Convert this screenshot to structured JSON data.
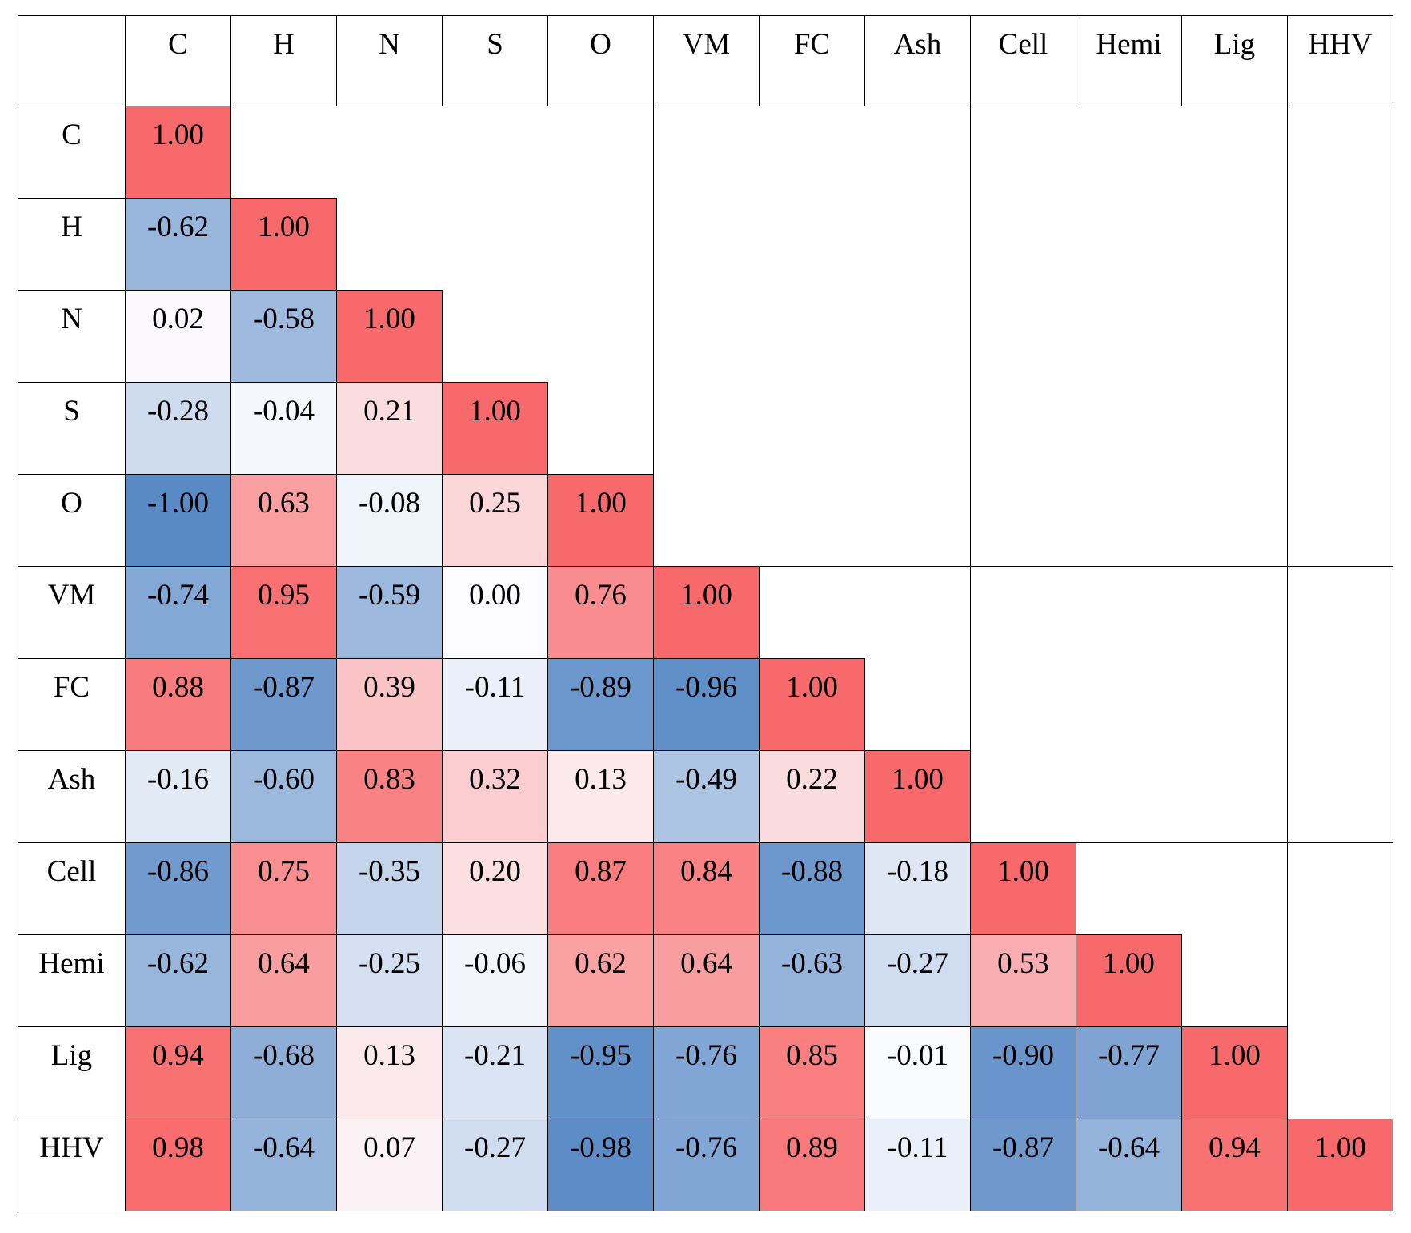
{
  "chart_data": {
    "type": "heatmap",
    "variables": [
      "C",
      "H",
      "N",
      "S",
      "O",
      "VM",
      "FC",
      "Ash",
      "Cell",
      "Hemi",
      "Lig",
      "HHV"
    ],
    "matrix": [
      [
        1.0
      ],
      [
        -0.62,
        1.0
      ],
      [
        0.02,
        -0.58,
        1.0
      ],
      [
        -0.28,
        -0.04,
        0.21,
        1.0
      ],
      [
        -1.0,
        0.63,
        -0.08,
        0.25,
        1.0
      ],
      [
        -0.74,
        0.95,
        -0.59,
        0.0,
        0.76,
        1.0
      ],
      [
        0.88,
        -0.87,
        0.39,
        -0.11,
        -0.89,
        -0.96,
        1.0
      ],
      [
        -0.16,
        -0.6,
        0.83,
        0.32,
        0.13,
        -0.49,
        0.22,
        1.0
      ],
      [
        -0.86,
        0.75,
        -0.35,
        0.2,
        0.87,
        0.84,
        -0.88,
        -0.18,
        1.0
      ],
      [
        -0.62,
        0.64,
        -0.25,
        -0.06,
        0.62,
        0.64,
        -0.63,
        -0.27,
        0.53,
        1.0
      ],
      [
        0.94,
        -0.68,
        0.13,
        -0.21,
        -0.95,
        -0.76,
        0.85,
        -0.01,
        -0.9,
        -0.77,
        1.0
      ],
      [
        0.98,
        -0.64,
        0.07,
        -0.27,
        -0.98,
        -0.76,
        0.89,
        -0.11,
        -0.87,
        -0.64,
        0.94,
        1.0
      ]
    ],
    "triangle": "lower",
    "value_range": [
      -1,
      1
    ],
    "colors": {
      "negative": "#5a8ac6",
      "zero": "#fcfcff",
      "positive": "#f8696b"
    }
  }
}
